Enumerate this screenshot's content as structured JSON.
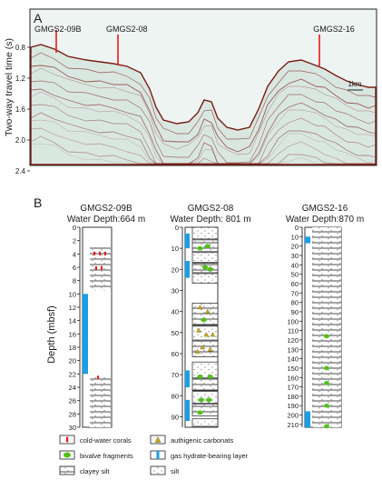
{
  "panel_a": {
    "letter": "A",
    "ylabel": "Two-way travel time (s)",
    "ticks": [
      "0.8",
      "1.2",
      "1.6",
      "2.0",
      "2.4"
    ],
    "sites": [
      "GMGS2-09B",
      "GMGS2-08",
      "GMGS2-16"
    ],
    "scale_label": "1km",
    "colors": {
      "seismic_bg": "#d9e7e1",
      "reflector": "#7a1c14",
      "site_marker": "#e8191c"
    }
  },
  "panel_b": {
    "letter": "B",
    "ylabel": "Depth (mbsf)",
    "colors": {
      "hydrate": "#1a9ee6",
      "carbonate": "#c9a81d",
      "bivalve": "#52c11a",
      "coral": "#e8191c",
      "core_fill": "#ffffff",
      "core_line": "#222222"
    },
    "cores": [
      {
        "name": "GMGS2-09B",
        "depth_label": "Water Depth:664 m",
        "ticks": [
          "0",
          "2",
          "4",
          "6",
          "8",
          "10",
          "12",
          "14",
          "16",
          "18",
          "20",
          "22",
          "24",
          "26",
          "28",
          "30"
        ],
        "max_depth": 30
      },
      {
        "name": "GMGS2-08",
        "depth_label": "Water Depth: 801 m",
        "ticks": [
          "0",
          "10",
          "20",
          "30",
          "40",
          "50",
          "60",
          "70",
          "80",
          "90"
        ],
        "max_depth": 95
      },
      {
        "name": "GMGS2-16",
        "depth_label": "Water Depth:870 m",
        "ticks": [
          "0",
          "10",
          "20",
          "30",
          "40",
          "50",
          "60",
          "70",
          "80",
          "90",
          "100",
          "110",
          "120",
          "130",
          "140",
          "150",
          "160",
          "170",
          "180",
          "190",
          "200",
          "210"
        ],
        "max_depth": 213
      }
    ],
    "legend": [
      {
        "key": "coral",
        "label": "cold-water corals"
      },
      {
        "key": "carbonate",
        "label": "authigenic carbonats"
      },
      {
        "key": "bivalve",
        "label": "bivalve fragments"
      },
      {
        "key": "hydrate",
        "label": "gas hydrate-bearing layer"
      },
      {
        "key": "clayey",
        "label": "clayey silt"
      },
      {
        "key": "silt",
        "label": "silt"
      }
    ]
  }
}
